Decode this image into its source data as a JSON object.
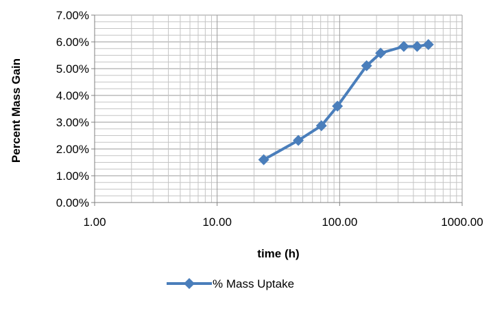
{
  "chart_data": {
    "type": "line",
    "xscale": "log",
    "xlabel": "time (h)",
    "ylabel": "Percent Mass Gain",
    "xlim": [
      1,
      1000
    ],
    "ylim": [
      0,
      0.07
    ],
    "x_ticks": [
      "1.00",
      "10.00",
      "100.00",
      "1000.00"
    ],
    "y_ticks": [
      "0.00%",
      "1.00%",
      "2.00%",
      "3.00%",
      "4.00%",
      "5.00%",
      "6.00%",
      "7.00%"
    ],
    "grid": true,
    "legend_position": "bottom",
    "series": [
      {
        "name": "% Mass Uptake",
        "color": "#4a7ebb",
        "marker": "diamond",
        "x": [
          24,
          46,
          71,
          96,
          166,
          216,
          334,
          429,
          530
        ],
        "y": [
          0.016,
          0.0232,
          0.0287,
          0.036,
          0.0511,
          0.0558,
          0.0583,
          0.0583,
          0.059
        ]
      }
    ]
  }
}
